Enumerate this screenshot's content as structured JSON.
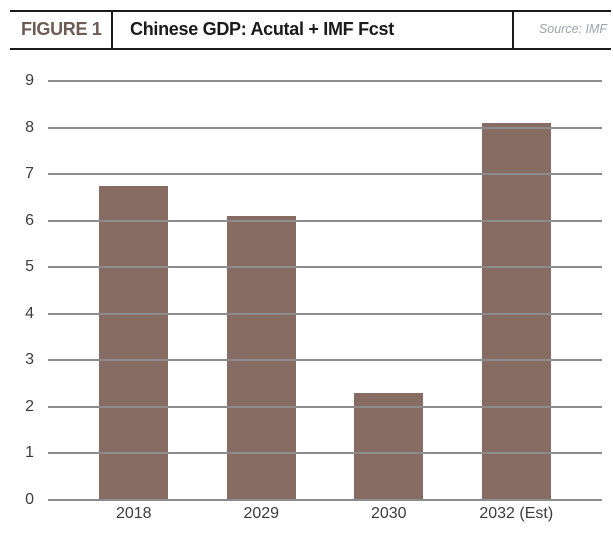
{
  "header": {
    "figure_label": "FIGURE 1",
    "title": "Chinese GDP: Acutal + IMF Fcst",
    "source": "Source: IMF"
  },
  "chart_data": {
    "type": "bar",
    "categories": [
      "2018",
      "2029",
      "2030",
      "2032 (Est)"
    ],
    "values": [
      6.75,
      6.1,
      2.3,
      8.1
    ],
    "title": "Chinese GDP: Acutal + IMF Fcst",
    "xlabel": "",
    "ylabel": "",
    "ylim": [
      0,
      9
    ],
    "yticks": [
      0,
      1,
      2,
      3,
      4,
      5,
      6,
      7,
      8,
      9
    ],
    "grid": true,
    "legend": "none",
    "bar_color": "#876C63",
    "gridline_color": "#8C8C8C",
    "axis_label_color": "#3C3C3C"
  }
}
